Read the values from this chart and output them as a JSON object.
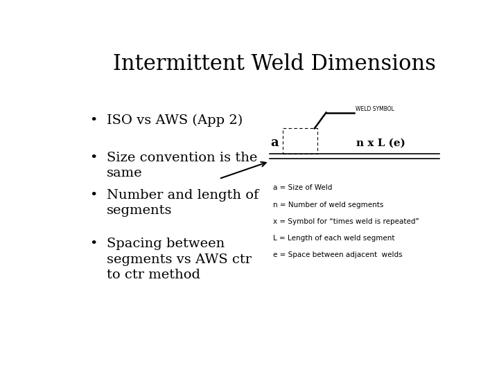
{
  "title": "Intermittent Weld Dimensions",
  "bullets": [
    "ISO vs AWS (App 2)",
    "Size convention is the\nsame",
    "Number and length of\nsegments",
    "Spacing between\nsegments vs AWS ctr\nto ctr method"
  ],
  "legend_lines": [
    "a = Size of Weld",
    "n = Number of weld segments",
    "x = Symbol for “times weld is repeated”",
    "L = Length of each weld segment",
    "e = Space between adjacent  welds"
  ],
  "weld_symbol_label": "WELD SYMBOL",
  "label_a": "a",
  "label_nxLe": "n x L (e)",
  "bg_color": "#ffffff",
  "text_color": "#000000",
  "title_fontsize": 22,
  "bullet_fontsize": 14,
  "legend_fontsize": 7.5
}
